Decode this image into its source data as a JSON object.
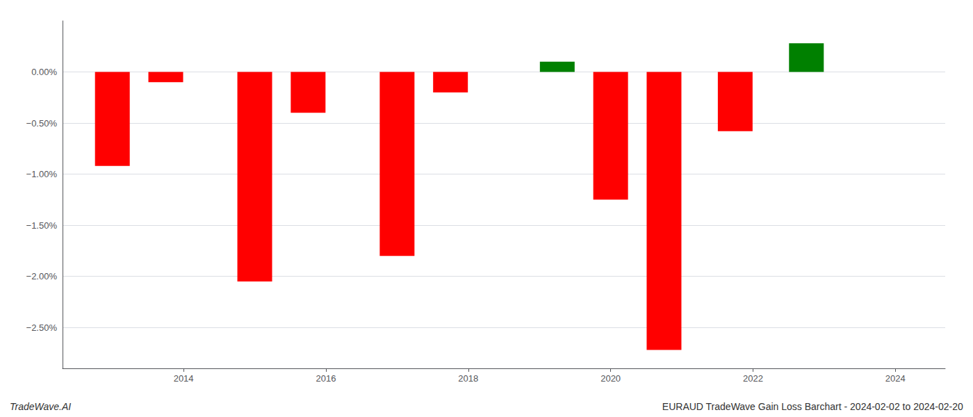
{
  "chart_data": {
    "type": "bar",
    "x": [
      2013,
      2013.75,
      2015.0,
      2015.75,
      2017.0,
      2017.75,
      2019.25,
      2020.0,
      2020.75,
      2021.75,
      2022.75
    ],
    "values": [
      -0.92,
      -0.1,
      -2.05,
      -0.4,
      -1.8,
      -0.2,
      0.1,
      -1.25,
      -2.72,
      -0.58,
      0.28
    ],
    "colors": [
      "#ff0000",
      "#ff0000",
      "#ff0000",
      "#ff0000",
      "#ff0000",
      "#ff0000",
      "#008000",
      "#ff0000",
      "#ff0000",
      "#ff0000",
      "#008000"
    ],
    "xlim": [
      2012.3,
      2024.7
    ],
    "xticks": [
      2014,
      2016,
      2018,
      2020,
      2022,
      2024
    ],
    "ylim": [
      -2.9,
      0.5
    ],
    "yticks": [
      {
        "value": 0.0,
        "label": "0.00%"
      },
      {
        "value": -0.5,
        "label": "−0.50%"
      },
      {
        "value": -1.0,
        "label": "−1.00%"
      },
      {
        "value": -1.5,
        "label": "−1.50%"
      },
      {
        "value": -2.0,
        "label": "−2.00%"
      },
      {
        "value": -2.5,
        "label": "−2.50%"
      }
    ],
    "grid": true,
    "annotations": [
      "TradeWave.AI",
      "EURAUD TradeWave Gain Loss Barchart - 2024-02-02 to 2024-02-20"
    ]
  }
}
